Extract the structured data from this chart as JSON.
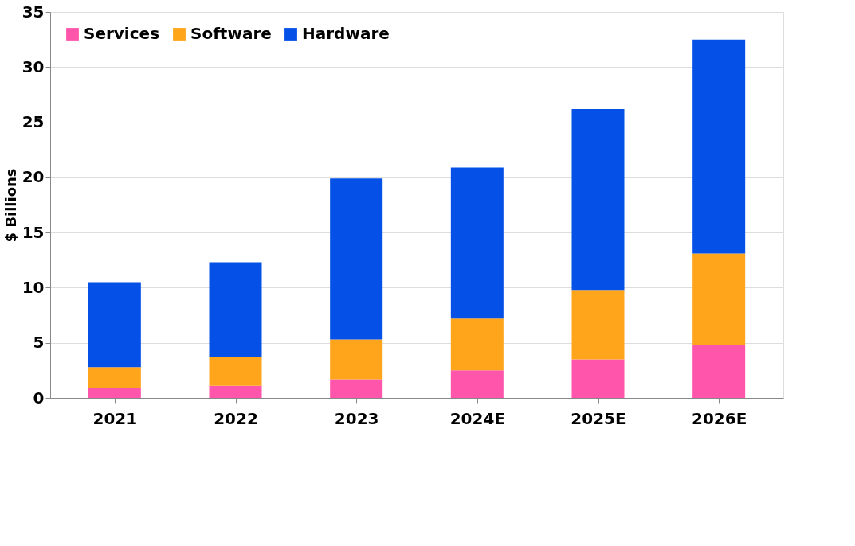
{
  "chart_data": {
    "type": "bar",
    "stacked": true,
    "ylabel": "$ Billions",
    "categories": [
      "2021",
      "2022",
      "2023",
      "2024E",
      "2025E",
      "2026E"
    ],
    "series": [
      {
        "name": "Services",
        "color": "#ff55aa",
        "values": [
          0.9,
          1.1,
          1.7,
          2.5,
          3.5,
          4.8
        ]
      },
      {
        "name": "Software",
        "color": "#ffa51c",
        "values": [
          1.9,
          2.6,
          3.6,
          4.7,
          6.3,
          8.3
        ]
      },
      {
        "name": "Hardware",
        "color": "#0550e6",
        "values": [
          7.7,
          8.6,
          14.6,
          13.7,
          16.4,
          19.4
        ]
      }
    ],
    "ylim": [
      0,
      35
    ],
    "yticks": [
      0,
      5,
      10,
      15,
      20,
      25,
      30,
      35
    ],
    "grid": "y",
    "legend": "top left"
  }
}
